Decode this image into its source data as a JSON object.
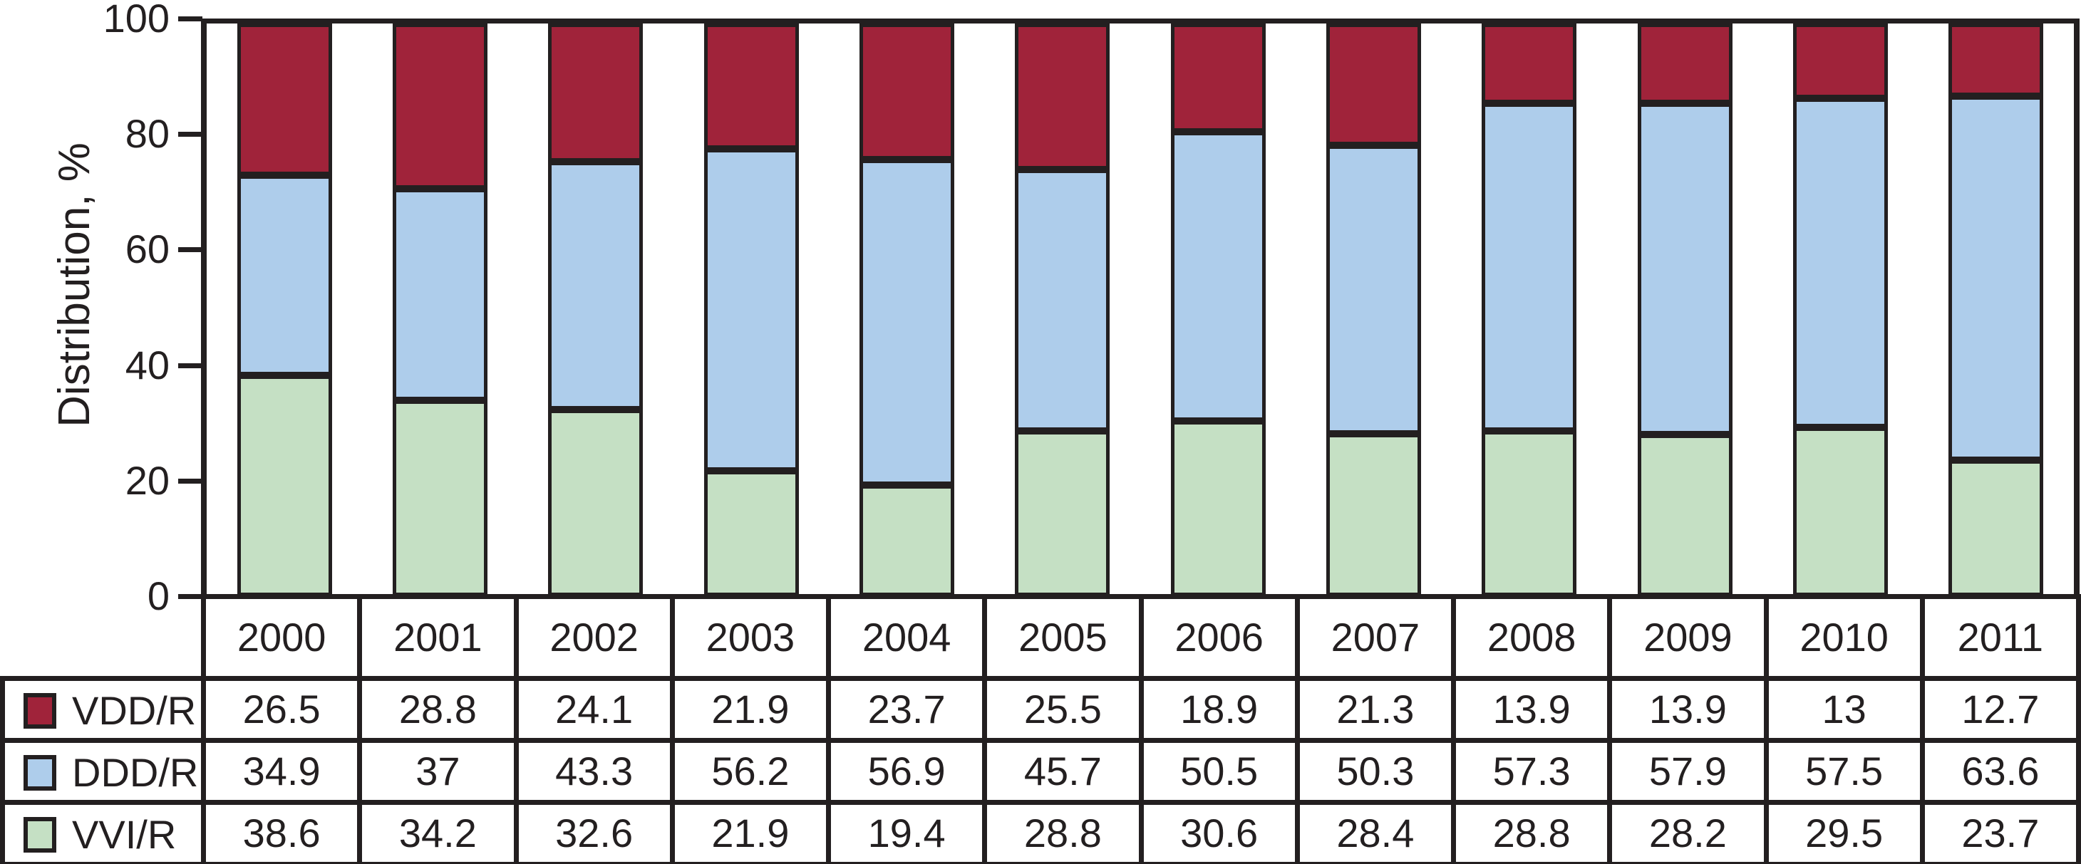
{
  "chart_data": {
    "type": "bar",
    "stacked": true,
    "title": "",
    "ylabel": "Distribution, %",
    "xlabel": "",
    "ylim": [
      0,
      100
    ],
    "yticks": [
      0,
      20,
      40,
      60,
      80,
      100
    ],
    "grid": false,
    "legend_position": "table-left",
    "background": "#ffffff",
    "axis_color": "#231f20",
    "categories": [
      "2000",
      "2001",
      "2002",
      "2003",
      "2004",
      "2005",
      "2006",
      "2007",
      "2008",
      "2009",
      "2010",
      "2011"
    ],
    "series": [
      {
        "name": "VDD/R",
        "color": "#A0233A",
        "values": [
          26.5,
          28.8,
          24.1,
          21.9,
          23.7,
          25.5,
          18.9,
          21.3,
          13.9,
          13.9,
          13,
          12.7
        ]
      },
      {
        "name": "DDD/R",
        "color": "#AECDEB",
        "values": [
          34.9,
          37,
          43.3,
          56.2,
          56.9,
          45.7,
          50.5,
          50.3,
          57.3,
          57.9,
          57.5,
          63.6
        ]
      },
      {
        "name": "VVI/R",
        "color": "#C5E0C4",
        "values": [
          38.6,
          34.2,
          32.6,
          21.9,
          19.4,
          28.8,
          30.6,
          28.4,
          28.8,
          28.2,
          29.5,
          23.7
        ]
      }
    ]
  }
}
